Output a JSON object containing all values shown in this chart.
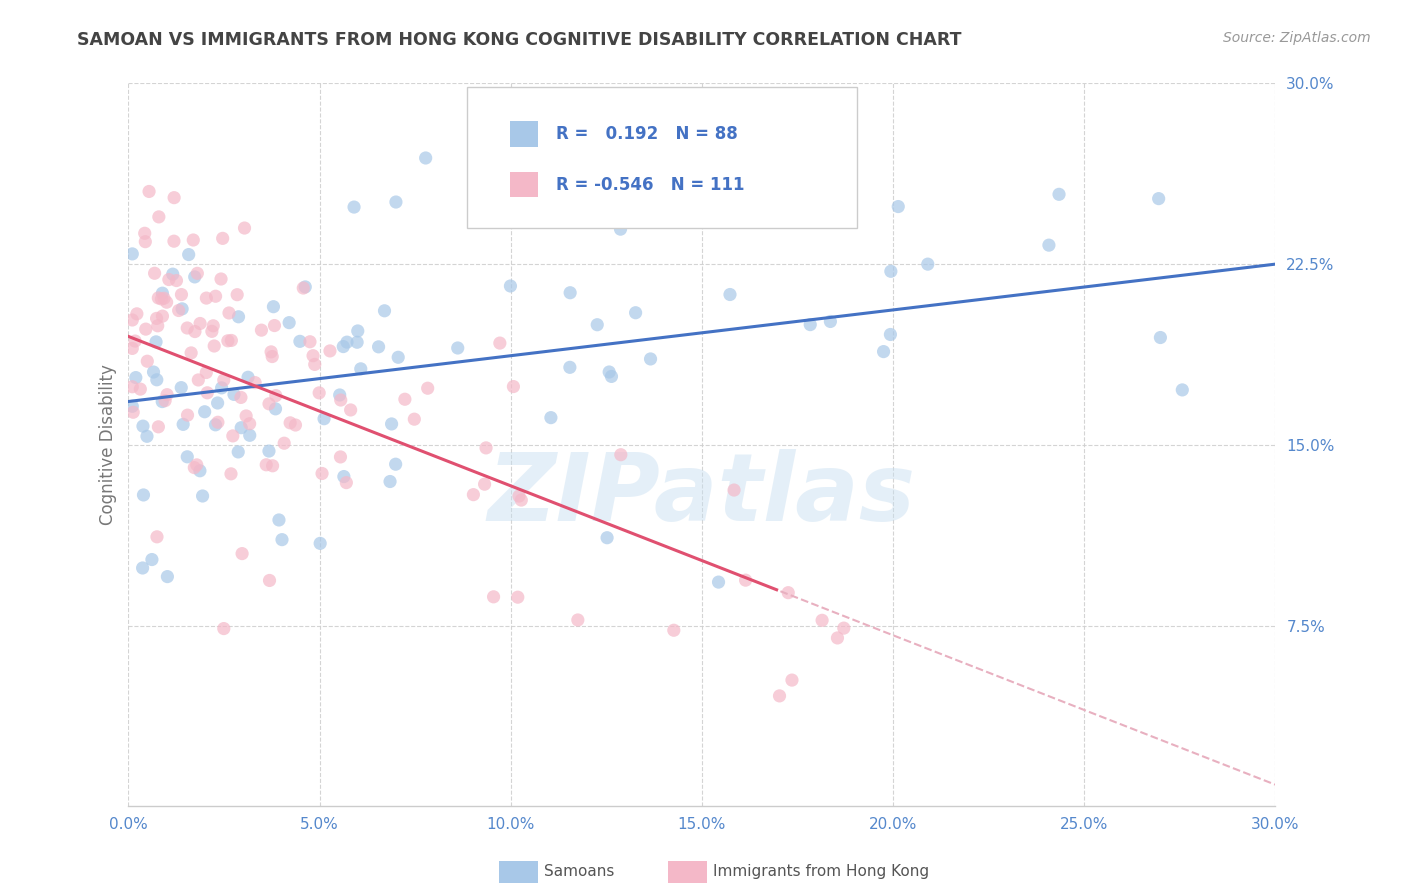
{
  "title": "SAMOAN VS IMMIGRANTS FROM HONG KONG COGNITIVE DISABILITY CORRELATION CHART",
  "source": "Source: ZipAtlas.com",
  "ylabel": "Cognitive Disability",
  "xmin": 0.0,
  "xmax": 0.3,
  "ymin": 0.0,
  "ymax": 0.3,
  "xticks": [
    0.0,
    0.05,
    0.1,
    0.15,
    0.2,
    0.25,
    0.3
  ],
  "yticks": [
    0.075,
    0.15,
    0.225,
    0.3
  ],
  "ytick_labels": [
    "7.5%",
    "15.0%",
    "22.5%",
    "30.0%"
  ],
  "xtick_labels": [
    "0.0%",
    "5.0%",
    "10.0%",
    "15.0%",
    "20.0%",
    "25.0%",
    "30.0%"
  ],
  "blue_color": "#a8c8e8",
  "pink_color": "#f4b8c8",
  "blue_line_color": "#4472c4",
  "pink_line_color": "#e05070",
  "pink_dash_color": "#e8b0c0",
  "R_blue": 0.192,
  "N_blue": 88,
  "R_pink": -0.546,
  "N_pink": 111,
  "legend_label_blue": "Samoans",
  "legend_label_pink": "Immigrants from Hong Kong",
  "watermark": "ZIPatlas",
  "background_color": "#ffffff",
  "grid_color": "#cccccc",
  "title_color": "#444444",
  "axis_label_color": "#777777",
  "tick_color": "#5588cc",
  "blue_intercept": 0.168,
  "blue_slope": 0.19,
  "pink_intercept": 0.195,
  "pink_slope": -0.62
}
